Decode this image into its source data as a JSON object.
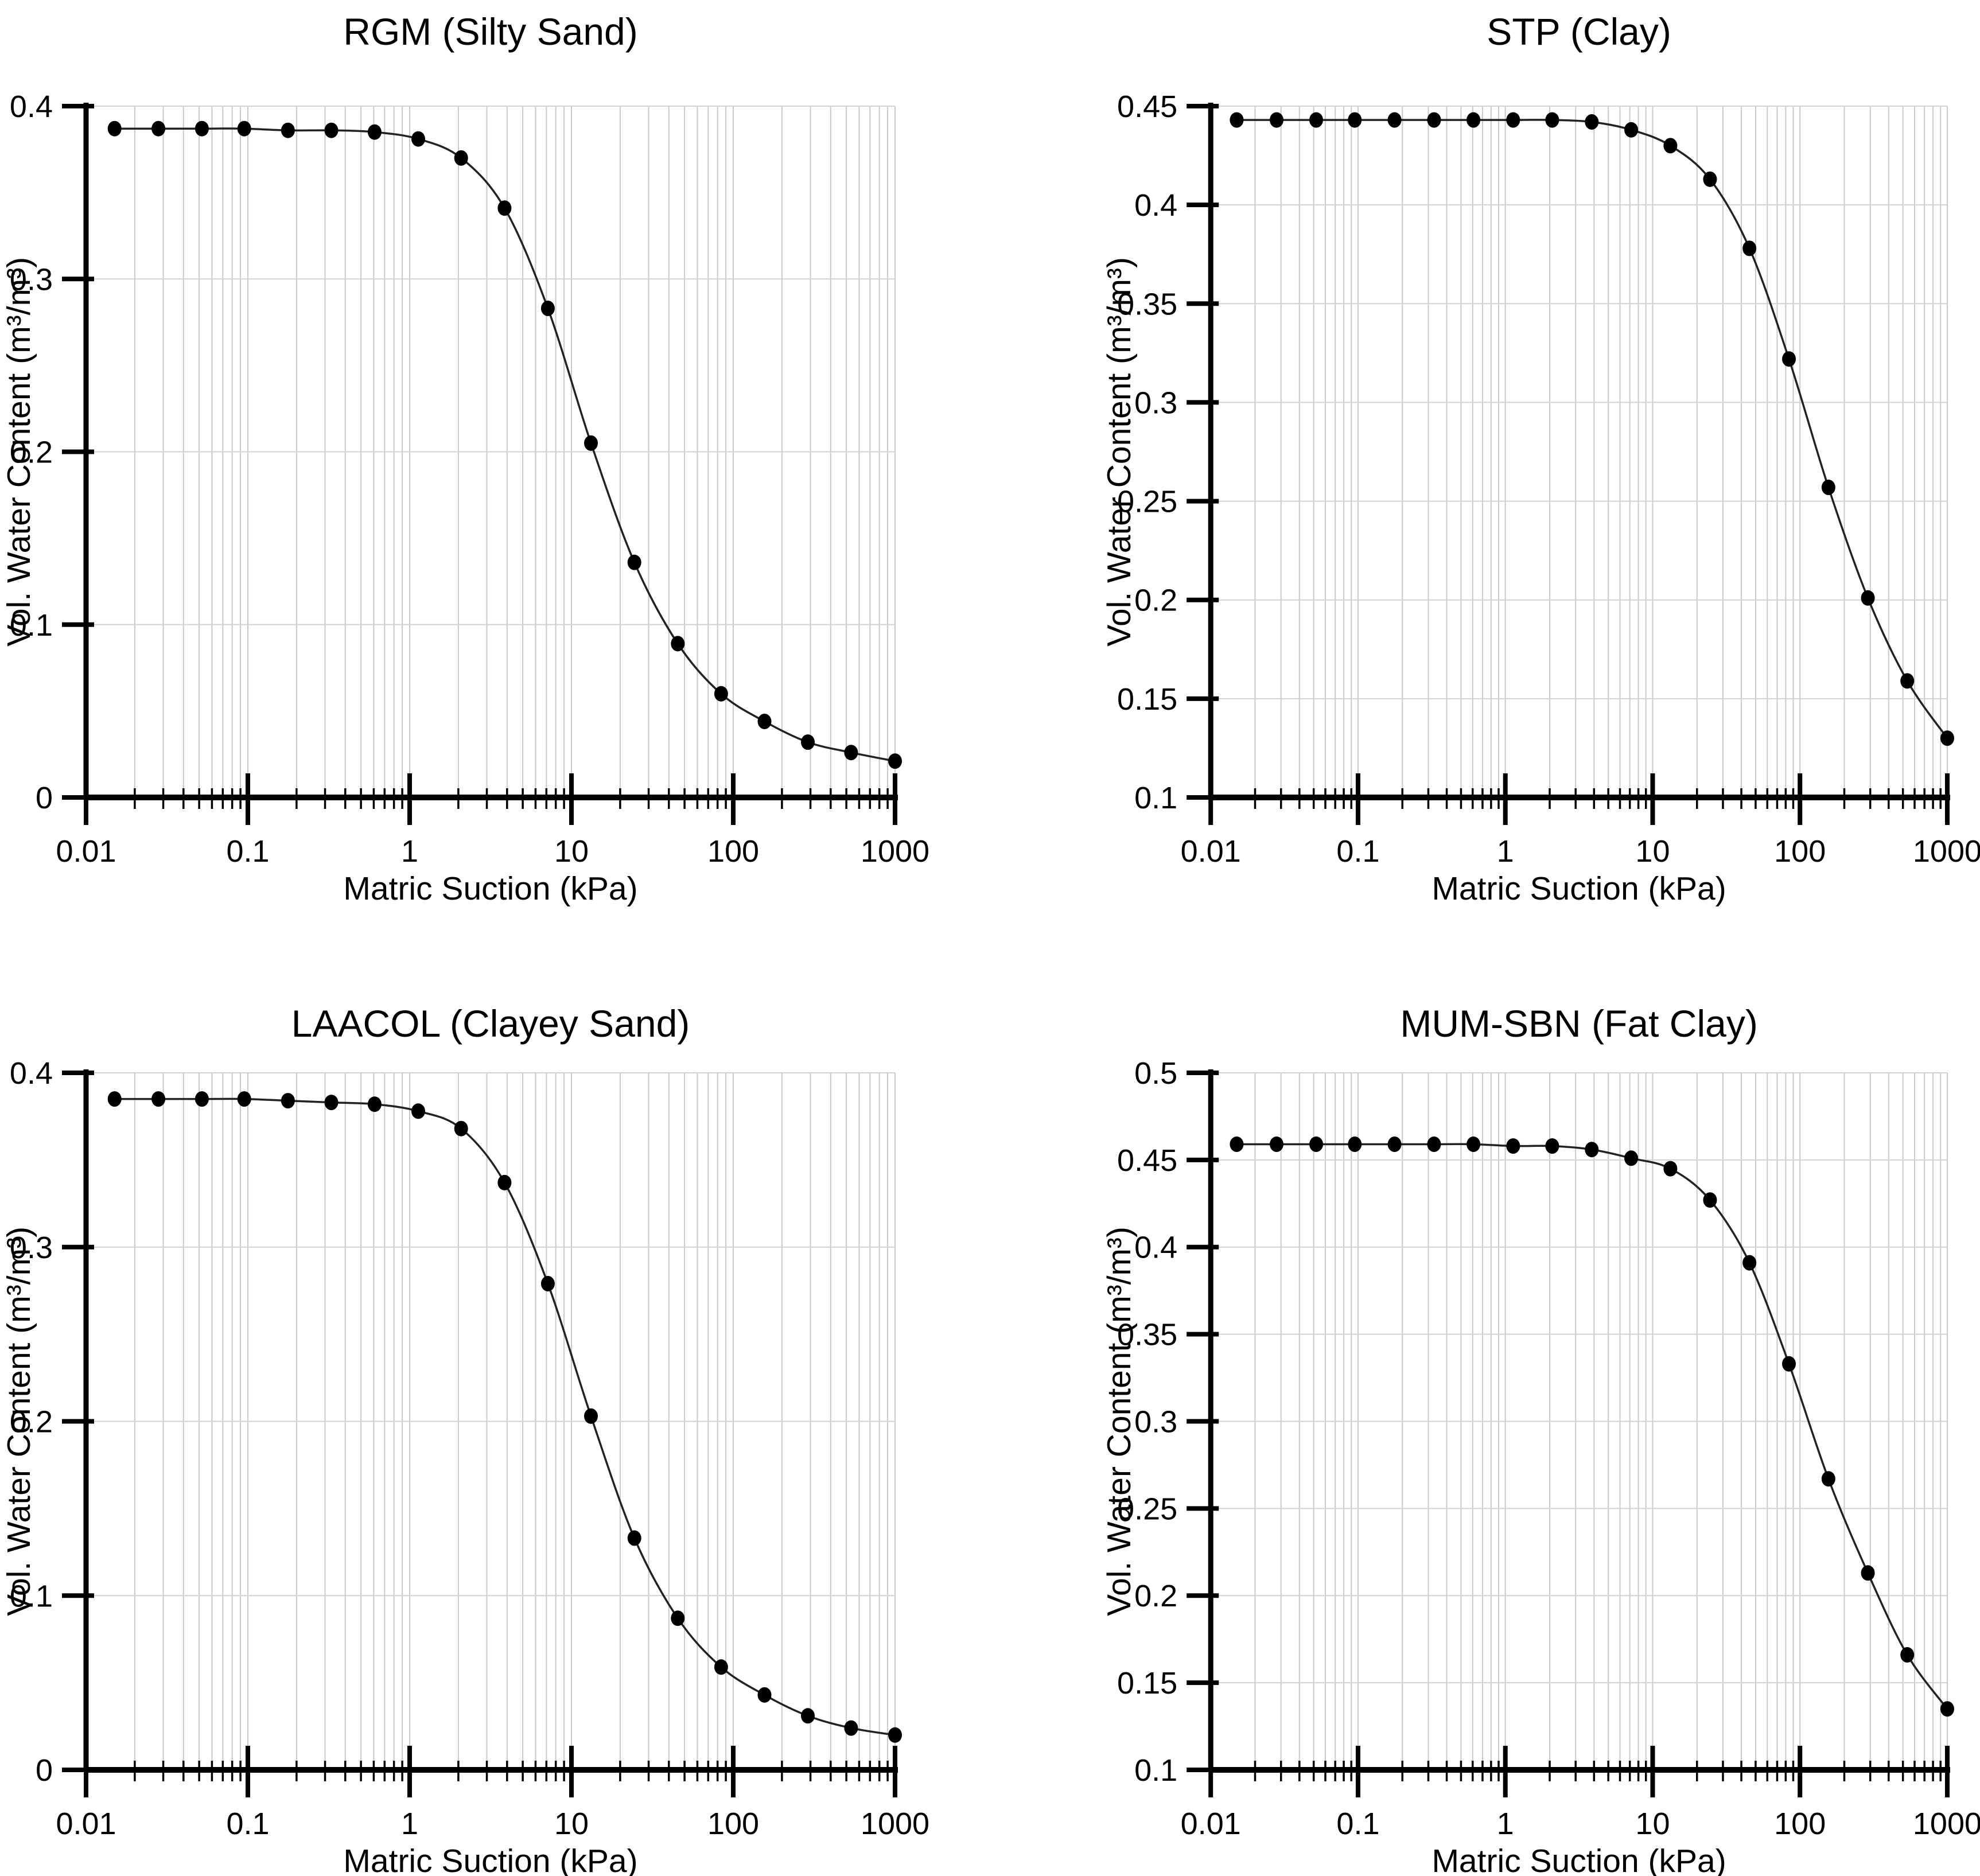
{
  "figure": {
    "background": "#ffffff",
    "axis_color": "#000000",
    "curve_color": "#222222",
    "marker_color": "#000000",
    "grid_color_vertical": "#c9c9c9",
    "grid_color_horizontal": "#d2d2d2"
  },
  "chart_data": [
    {
      "id": "rgm",
      "type": "scatter",
      "title": "RGM (Silty Sand)",
      "xlabel": "Matric Suction (kPa)",
      "ylabel": "Vol. Water Content (m³/m³)",
      "x_scale": "log",
      "xlim": [
        0.01,
        1000
      ],
      "x_tick_labels": [
        "0.01",
        "0.1",
        "1",
        "10",
        "100",
        "1000"
      ],
      "ylim": [
        0,
        0.4
      ],
      "y_ticks": [
        0,
        0.1,
        0.2,
        0.3,
        0.4
      ],
      "y_tick_labels": [
        "0",
        "0.1",
        "0.2",
        "0.3",
        "0.4"
      ],
      "grid": true,
      "legend": "none",
      "x": [
        0.015,
        0.028,
        0.052,
        0.095,
        0.177,
        0.328,
        0.607,
        1.13,
        2.08,
        3.86,
        7.15,
        13.2,
        24.5,
        45.4,
        84.2,
        156,
        289,
        535,
        1000
      ],
      "y": [
        0.387,
        0.387,
        0.387,
        0.387,
        0.386,
        0.386,
        0.385,
        0.381,
        0.37,
        0.341,
        0.283,
        0.205,
        0.136,
        0.089,
        0.06,
        0.044,
        0.032,
        0.026,
        0.021
      ]
    },
    {
      "id": "stp",
      "type": "scatter",
      "title": "STP (Clay)",
      "xlabel": "Matric Suction (kPa)",
      "ylabel": "Vol. Water Content (m³/m³)",
      "x_scale": "log",
      "xlim": [
        0.01,
        1000
      ],
      "x_tick_labels": [
        "0.01",
        "0.1",
        "1",
        "10",
        "100",
        "1000"
      ],
      "ylim": [
        0.1,
        0.45
      ],
      "y_ticks": [
        0.1,
        0.15,
        0.2,
        0.25,
        0.3,
        0.35,
        0.4,
        0.45
      ],
      "y_tick_labels": [
        "0.1",
        "0.15",
        "0.2",
        "0.25",
        "0.3",
        "0.35",
        "0.4",
        "0.45"
      ],
      "grid": true,
      "legend": "none",
      "x": [
        0.015,
        0.028,
        0.052,
        0.095,
        0.177,
        0.328,
        0.607,
        1.13,
        2.08,
        3.86,
        7.15,
        13.2,
        24.5,
        45.4,
        84.2,
        156,
        289,
        535,
        1000
      ],
      "y": [
        0.443,
        0.443,
        0.443,
        0.443,
        0.443,
        0.443,
        0.443,
        0.443,
        0.443,
        0.442,
        0.438,
        0.43,
        0.413,
        0.378,
        0.322,
        0.257,
        0.201,
        0.159,
        0.13
      ]
    },
    {
      "id": "laacol",
      "type": "scatter",
      "title": "LAACOL (Clayey Sand)",
      "xlabel": "Matric Suction (kPa)",
      "ylabel": "Vol. Water Content (m³/m³)",
      "x_scale": "log",
      "xlim": [
        0.01,
        1000
      ],
      "x_tick_labels": [
        "0.01",
        "0.1",
        "1",
        "10",
        "100",
        "1000"
      ],
      "ylim": [
        0,
        0.4
      ],
      "y_ticks": [
        0,
        0.1,
        0.2,
        0.3,
        0.4
      ],
      "y_tick_labels": [
        "0",
        "0.1",
        "0.2",
        "0.3",
        "0.4"
      ],
      "grid": true,
      "legend": "none",
      "x": [
        0.015,
        0.028,
        0.052,
        0.095,
        0.177,
        0.328,
        0.607,
        1.13,
        2.08,
        3.86,
        7.15,
        13.2,
        24.5,
        45.4,
        84.2,
        156,
        289,
        535,
        1000
      ],
      "y": [
        0.385,
        0.385,
        0.385,
        0.385,
        0.384,
        0.383,
        0.382,
        0.378,
        0.368,
        0.337,
        0.279,
        0.203,
        0.133,
        0.087,
        0.059,
        0.043,
        0.031,
        0.024,
        0.02
      ]
    },
    {
      "id": "mum-sbn",
      "type": "scatter",
      "title": "MUM-SBN (Fat Clay)",
      "xlabel": "Matric Suction (kPa)",
      "ylabel": "Vol. Water Content (m³/m³)",
      "x_scale": "log",
      "xlim": [
        0.01,
        1000
      ],
      "x_tick_labels": [
        "0.01",
        "0.1",
        "1",
        "10",
        "100",
        "1000"
      ],
      "ylim": [
        0.1,
        0.5
      ],
      "y_ticks": [
        0.1,
        0.15,
        0.2,
        0.25,
        0.3,
        0.35,
        0.4,
        0.45,
        0.5
      ],
      "y_tick_labels": [
        "0.1",
        "0.15",
        "0.2",
        "0.25",
        "0.3",
        "0.35",
        "0.4",
        "0.45",
        "0.5"
      ],
      "grid": true,
      "legend": "none",
      "x": [
        0.015,
        0.028,
        0.052,
        0.095,
        0.177,
        0.328,
        0.607,
        1.13,
        2.08,
        3.86,
        7.15,
        13.2,
        24.5,
        45.4,
        84.2,
        156,
        289,
        535,
        1000
      ],
      "y": [
        0.459,
        0.459,
        0.459,
        0.459,
        0.459,
        0.459,
        0.459,
        0.458,
        0.458,
        0.456,
        0.451,
        0.445,
        0.427,
        0.391,
        0.333,
        0.267,
        0.213,
        0.166,
        0.135
      ]
    }
  ]
}
